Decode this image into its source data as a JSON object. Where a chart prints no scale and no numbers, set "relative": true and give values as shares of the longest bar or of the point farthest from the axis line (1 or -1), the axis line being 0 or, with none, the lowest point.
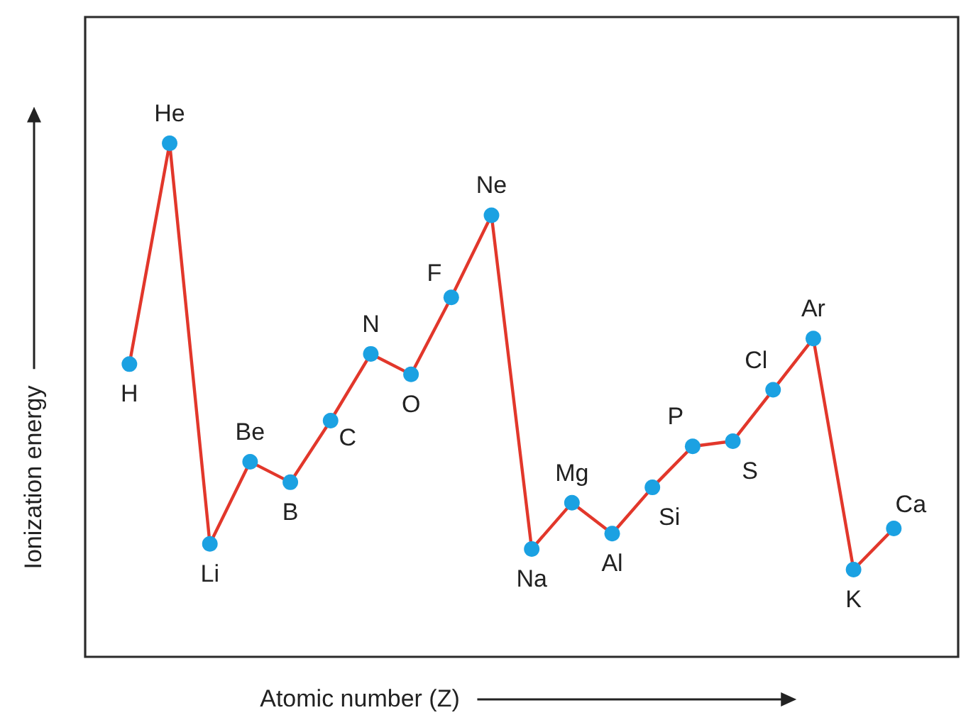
{
  "chart_data": {
    "type": "line",
    "xlabel": "Atomic number (Z)",
    "ylabel": "Ionization energy",
    "relative": true,
    "tick_labels": false,
    "marker": "circle",
    "line_style": "solid",
    "categories": [
      "H",
      "He",
      "Li",
      "Be",
      "B",
      "C",
      "N",
      "O",
      "F",
      "Ne",
      "Na",
      "Mg",
      "Al",
      "Si",
      "P",
      "S",
      "Cl",
      "Ar",
      "K",
      "Ca"
    ],
    "series": [
      {
        "color": "#e2372b",
        "colors": [
          "#1ba1e2",
          "#1ba1e2",
          "#1ba1e2",
          "#1ba1e2",
          "#1ba1e2",
          "#1ba1e2",
          "#1ba1e2",
          "#1ba1e2",
          "#1ba1e2",
          "#1ba1e2",
          "#1ba1e2",
          "#1ba1e2",
          "#1ba1e2",
          "#1ba1e2",
          "#1ba1e2",
          "#1ba1e2",
          "#1ba1e2",
          "#1ba1e2",
          "#1ba1e2",
          "#1ba1e2"
        ],
        "values": [
          0.57,
          1,
          0.22,
          0.38,
          0.34,
          0.46,
          0.59,
          0.55,
          0.7,
          0.86,
          0.21,
          0.3,
          0.24,
          0.33,
          0.41,
          0.42,
          0.52,
          0.62,
          0.17,
          0.25
        ]
      }
    ]
  }
}
